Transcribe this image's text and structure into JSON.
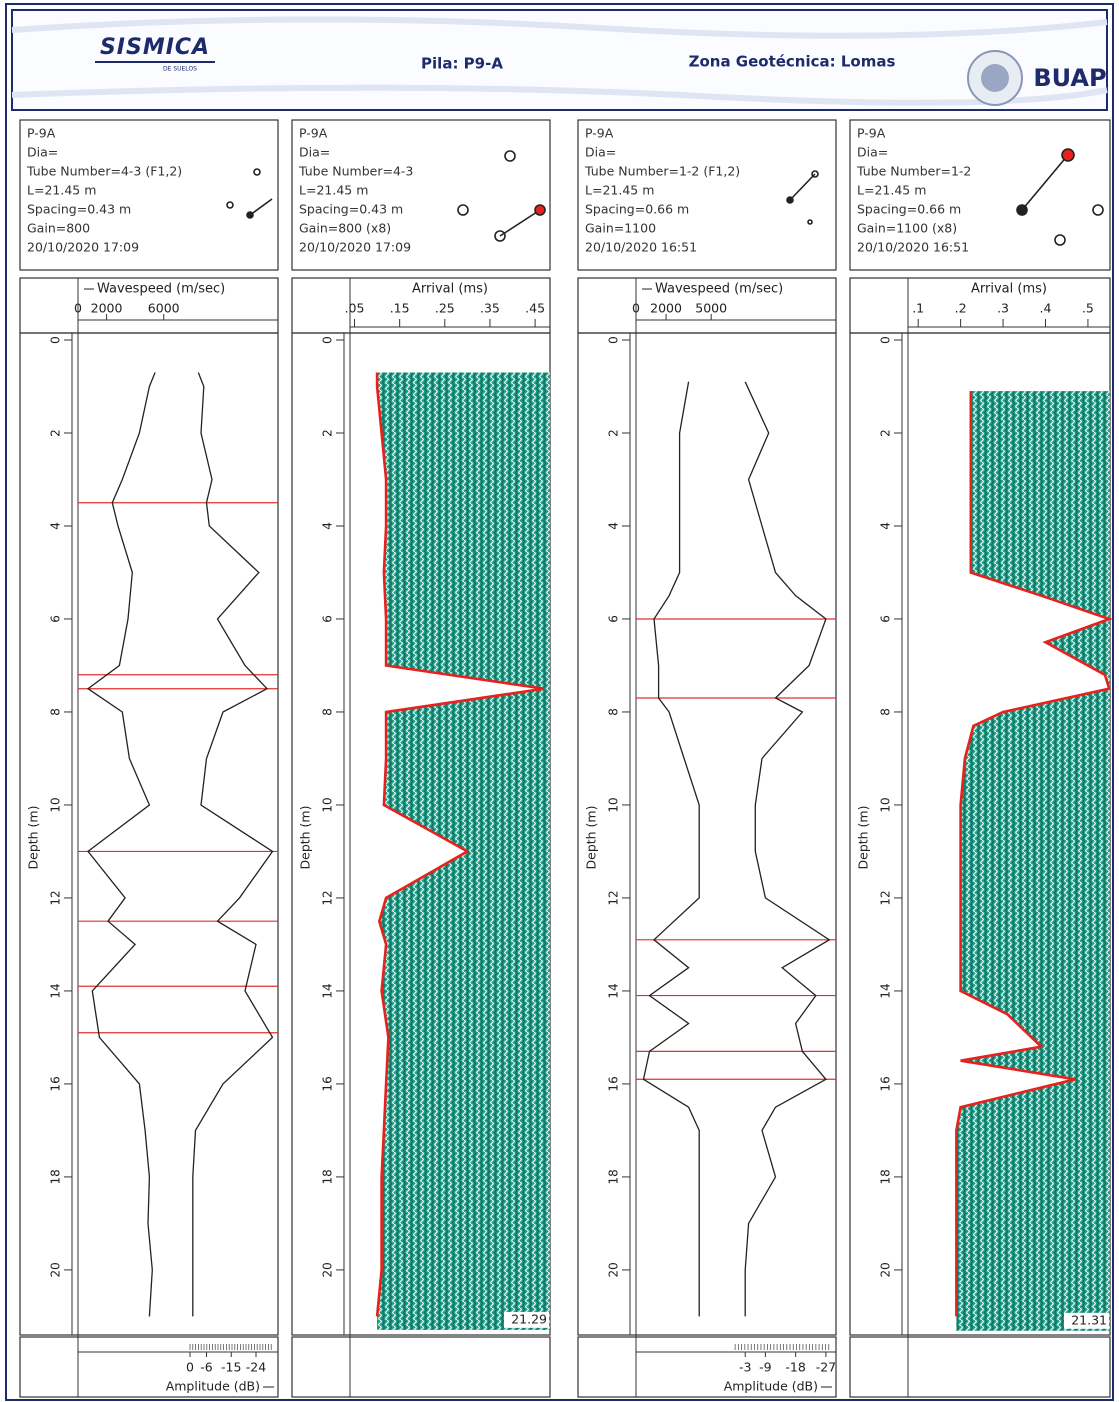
{
  "header": {
    "logo": "SISMICA",
    "logo_sub": "DE SUELOS",
    "pile": "Pila: P9-A",
    "zone": "Zona Geotécnica: Lomas",
    "institution": "BUAP"
  },
  "chart_data": [
    {
      "type": "line",
      "info": [
        "P-9A",
        "Dia=",
        "Tube Number=4-3 (F1,2)",
        "L=21.45 m",
        "Spacing=0.43 m",
        "Gain=800",
        "20/10/2020 17:09"
      ],
      "ylabel": "Depth (m)",
      "ylim": [
        0,
        21.4
      ],
      "yticks": [
        0,
        2,
        4,
        6,
        8,
        10,
        12,
        14,
        16,
        18,
        20
      ],
      "xlabel": "Wavespeed (m/sec)",
      "xlim": [
        0,
        14000
      ],
      "xticks": [
        0,
        2000,
        6000
      ],
      "x2label": "Amplitude (dB)",
      "x2lim": [
        0,
        -32
      ],
      "x2ticks": [
        0,
        -6,
        -15,
        -24
      ],
      "depths": [
        0.7,
        1,
        2,
        3,
        3.5,
        4,
        5,
        6,
        7,
        7.5,
        8,
        9,
        10,
        11,
        12,
        12.5,
        13,
        14,
        15,
        16,
        17,
        18,
        19,
        20,
        21
      ],
      "wavespeed": [
        5400,
        5000,
        4300,
        3100,
        2400,
        2800,
        3800,
        3500,
        2900,
        700,
        3100,
        3600,
        5000,
        700,
        3300,
        2100,
        4000,
        1000,
        1500,
        4300,
        4700,
        5000,
        4900,
        5200,
        5000
      ],
      "amplitude": [
        -3,
        -5,
        -4,
        -8,
        -6,
        -7,
        -25,
        -10,
        -20,
        -28,
        -12,
        -6,
        -4,
        -30,
        -18,
        -10,
        -24,
        -20,
        -30,
        -12,
        -2,
        -1,
        -1,
        -1,
        -1
      ],
      "anomaly_depths": [
        3.5,
        7.2,
        7.5,
        11,
        12.5,
        13.9,
        14.9
      ],
      "color": "#222222",
      "anomaly_color": "#e03030"
    },
    {
      "type": "area",
      "info": [
        "P-9A",
        "Dia=",
        "Tube Number=4-3",
        "L=21.45 m",
        "Spacing=0.43 m",
        "Gain=800 (x8)",
        "20/10/2020 17:09"
      ],
      "ylabel": "Depth (m)",
      "ylim": [
        0,
        21.4
      ],
      "yticks": [
        0,
        2,
        4,
        6,
        8,
        10,
        12,
        14,
        16,
        18,
        20
      ],
      "xlabel": "Arrival (ms)",
      "xlim": [
        0.04,
        0.483
      ],
      "xticks": [
        {
          "value": 0.05,
          "label": ".05"
        },
        {
          "value": 0.15,
          "label": ".15"
        },
        {
          "value": 0.25,
          "label": ".25"
        },
        {
          "value": 0.35,
          "label": ".35"
        },
        {
          "value": 0.45,
          "label": ".45"
        }
      ],
      "depths": [
        0.7,
        1,
        2,
        3,
        3.5,
        4,
        5,
        6,
        7,
        7.5,
        8,
        9,
        10,
        11,
        12,
        12.5,
        13,
        14,
        15,
        16,
        17,
        18,
        19,
        20,
        21
      ],
      "arrival": [
        0.1,
        0.1,
        0.11,
        0.12,
        0.12,
        0.12,
        0.115,
        0.12,
        0.12,
        0.47,
        0.12,
        0.12,
        0.115,
        0.3,
        0.12,
        0.105,
        0.12,
        0.11,
        0.125,
        0.12,
        0.115,
        0.11,
        0.11,
        0.11,
        0.1
      ],
      "end_depth": 21.29,
      "color": "#e8211d",
      "fill": "#1f9d88"
    },
    {
      "type": "line",
      "info": [
        "P-9A",
        "Dia=",
        "Tube Number=1-2 (F1,2)",
        "L=21.45 m",
        "Spacing=0.66 m",
        "Gain=1100",
        "20/10/2020 16:51"
      ],
      "ylabel": "Depth (m)",
      "ylim": [
        0,
        21.4
      ],
      "yticks": [
        0,
        2,
        4,
        6,
        8,
        10,
        12,
        14,
        16,
        18,
        20
      ],
      "xlabel": "Wavespeed (m/sec)",
      "xlim": [
        0,
        13300
      ],
      "xticks": [
        0,
        2000,
        5000
      ],
      "x2label": "Amplitude (dB)",
      "x2lim": [
        0,
        -30
      ],
      "x2ticks": [
        -3,
        -9,
        -18,
        -27
      ],
      "depths": [
        0.9,
        2,
        3,
        4,
        5,
        5.5,
        6,
        7,
        7.7,
        8,
        9,
        10,
        11,
        12,
        12.9,
        13.5,
        14.1,
        14.7,
        15.3,
        15.9,
        16.5,
        17,
        18,
        19,
        20,
        21
      ],
      "wavespeed": [
        3500,
        2900,
        2900,
        2900,
        2900,
        2200,
        1200,
        1500,
        1500,
        2200,
        3200,
        4200,
        4200,
        4200,
        1200,
        3500,
        900,
        3500,
        900,
        500,
        3500,
        4200,
        4200,
        4200,
        4200,
        4200
      ],
      "amplitude": [
        -3,
        -10,
        -4,
        -8,
        -12,
        -18,
        -27,
        -22,
        -12,
        -20,
        -8,
        -6,
        -6,
        -9,
        -28,
        -14,
        -24,
        -18,
        -20,
        -27,
        -12,
        -8,
        -12,
        -4,
        -3,
        -3
      ],
      "anomaly_depths": [
        6,
        7.7,
        12.9,
        14.1,
        15.3,
        15.9
      ],
      "color": "#222222",
      "anomaly_color": "#e03030"
    },
    {
      "type": "area",
      "info": [
        "P-9A",
        "Dia=",
        "Tube Number=1-2",
        "L=21.45 m",
        "Spacing=0.66 m",
        "Gain=1100 (x8)",
        "20/10/2020 16:51"
      ],
      "ylabel": "Depth (m)",
      "ylim": [
        0,
        21.4
      ],
      "yticks": [
        0,
        2,
        4,
        6,
        8,
        10,
        12,
        14,
        16,
        18,
        20
      ],
      "xlabel": "Arrival (ms)",
      "xlim": [
        0.076,
        0.552
      ],
      "xticks": [
        {
          "value": 0.1,
          "label": ".1"
        },
        {
          "value": 0.2,
          "label": ".2"
        },
        {
          "value": 0.3,
          "label": ".3"
        },
        {
          "value": 0.4,
          "label": ".4"
        },
        {
          "value": 0.5,
          "label": ".5"
        }
      ],
      "depths": [
        1.1,
        2,
        3,
        4,
        5,
        5.5,
        6,
        6.5,
        7.2,
        7.5,
        8,
        8.3,
        9,
        10,
        11,
        12,
        13,
        14,
        14.5,
        15.2,
        15.5,
        15.9,
        16.5,
        17,
        18,
        19,
        20,
        21
      ],
      "arrival": [
        0.224,
        0.224,
        0.224,
        0.224,
        0.224,
        0.39,
        0.55,
        0.4,
        0.54,
        0.55,
        0.3,
        0.23,
        0.21,
        0.2,
        0.2,
        0.2,
        0.2,
        0.2,
        0.31,
        0.39,
        0.2,
        0.47,
        0.2,
        0.19,
        0.19,
        0.19,
        0.19,
        0.19
      ],
      "end_depth": 21.31,
      "color": "#e8211d",
      "fill": "#1f9d88"
    }
  ]
}
